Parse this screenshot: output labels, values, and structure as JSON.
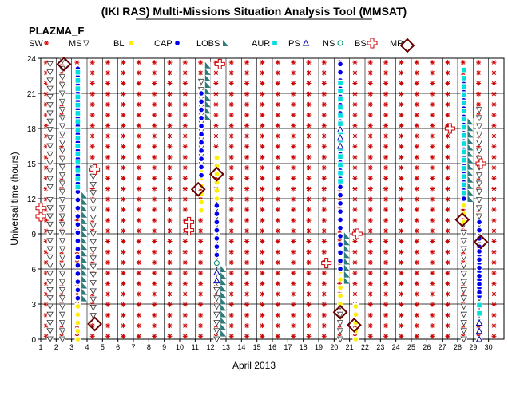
{
  "chart_data": {
    "type": "scatter",
    "title": "(IKI RAS) Multi-Missions Situation Analysis Tool (MMSAT)",
    "subtitle": "PLAZMA_F",
    "xlabel": "April 2013",
    "ylabel": "Universal time (hours)",
    "xlim": [
      1,
      31
    ],
    "ylim": [
      0,
      24
    ],
    "xticks": [
      "1",
      "2",
      "3",
      "4",
      "5",
      "6",
      "7",
      "8",
      "9",
      "10",
      "11",
      "12",
      "13",
      "14",
      "15",
      "16",
      "17",
      "18",
      "19",
      "20",
      "21",
      "22",
      "23",
      "24",
      "25",
      "26",
      "27",
      "28",
      "29",
      "30"
    ],
    "yticks": [
      "0",
      "3",
      "6",
      "9",
      "12",
      "15",
      "18",
      "21",
      "24"
    ],
    "grid": true,
    "legend": [
      {
        "key": "SW",
        "label": "SW",
        "color": "#cc0000",
        "marker": "star"
      },
      {
        "key": "MS",
        "label": "MS",
        "color": "#333333",
        "marker": "triangle-down"
      },
      {
        "key": "BL",
        "label": "BL",
        "color": "#ffee00",
        "marker": "circle"
      },
      {
        "key": "CAP",
        "label": "CAP",
        "color": "#0000ee",
        "marker": "circle"
      },
      {
        "key": "LOBS",
        "label": "LOBS",
        "color": "#2e7b7b",
        "marker": "triangle-fill"
      },
      {
        "key": "AUR",
        "label": "AUR",
        "color": "#00dddd",
        "marker": "square"
      },
      {
        "key": "PS",
        "label": "PS",
        "color": "#0000aa",
        "marker": "triangle-up"
      },
      {
        "key": "NS",
        "label": "NS",
        "color": "#008866",
        "marker": "circle-open"
      },
      {
        "key": "BS",
        "label": "BS",
        "color": "#cc0000",
        "marker": "cross"
      },
      {
        "key": "MP",
        "label": "MP",
        "color": "#660000",
        "marker": "diamond"
      }
    ],
    "series": [
      {
        "key": "MS",
        "ranges": [
          [
            1.6,
            0,
            12
          ],
          [
            1.6,
            13,
            23.5
          ],
          [
            2.4,
            0,
            24
          ],
          [
            4.4,
            2,
            15
          ],
          [
            11.4,
            15,
            22
          ],
          [
            12.4,
            0,
            12
          ],
          [
            20.4,
            0,
            3
          ],
          [
            28.4,
            0,
            10
          ],
          [
            29.4,
            0,
            20
          ]
        ]
      },
      {
        "key": "BL",
        "ranges": [
          [
            3.4,
            0,
            3
          ],
          [
            11.4,
            11,
            15
          ],
          [
            12.4,
            12,
            16
          ],
          [
            20.4,
            3,
            6
          ],
          [
            21.4,
            0,
            3
          ],
          [
            28.4,
            10,
            12
          ]
        ]
      },
      {
        "key": "CAP",
        "ranges": [
          [
            3.4,
            3.5,
            23.5
          ],
          [
            11.4,
            14,
            21
          ],
          [
            12.4,
            6.5,
            12
          ],
          [
            20.4,
            6,
            23.5
          ],
          [
            28.4,
            12,
            22
          ],
          [
            29.4,
            3,
            10
          ],
          [
            29.4,
            4,
            8
          ]
        ]
      },
      {
        "key": "LOBS",
        "ranges": [
          [
            3.8,
            3.5,
            12.5
          ],
          [
            11.8,
            19,
            23.5
          ],
          [
            12.8,
            0.5,
            6.5
          ],
          [
            20.8,
            5,
            9
          ],
          [
            28.8,
            12,
            19
          ]
        ]
      },
      {
        "key": "AUR",
        "ranges": [
          [
            3.4,
            13,
            23
          ],
          [
            20.4,
            13.5,
            22.5
          ],
          [
            28.4,
            12.5,
            23.5
          ],
          [
            29.4,
            1.5,
            3.5
          ]
        ]
      },
      {
        "key": "PS",
        "ranges": [
          [
            12.4,
            5,
            6
          ],
          [
            20.4,
            16.5,
            18.5
          ],
          [
            29.4,
            0,
            2
          ]
        ]
      },
      {
        "key": "NS",
        "ranges": [
          [
            12.4,
            6.5,
            6.6
          ]
        ]
      },
      {
        "key": "BS",
        "points": [
          [
            1,
            10.5
          ],
          [
            1,
            11.2
          ],
          [
            4.5,
            14.5
          ],
          [
            10.6,
            9.3
          ],
          [
            10.6,
            10
          ],
          [
            12.6,
            23.5
          ],
          [
            19.5,
            6.5
          ],
          [
            21.5,
            9
          ],
          [
            27.5,
            18
          ],
          [
            29.5,
            15
          ]
        ]
      },
      {
        "key": "MP",
        "points": [
          [
            2.5,
            23.5
          ],
          [
            4.5,
            1.3
          ],
          [
            11.2,
            12.8
          ],
          [
            12.4,
            14.1
          ],
          [
            20.4,
            2.3
          ],
          [
            21.3,
            1.2
          ],
          [
            28.3,
            10.2
          ],
          [
            29.5,
            8.3
          ]
        ]
      }
    ]
  }
}
